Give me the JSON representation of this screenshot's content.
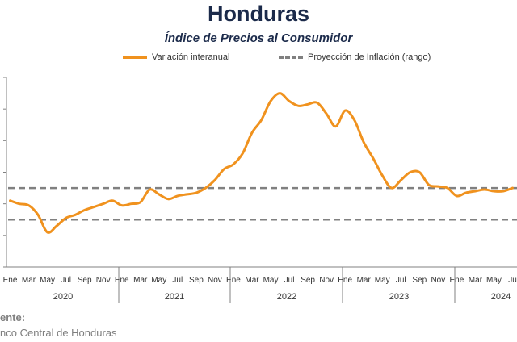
{
  "title": "Honduras",
  "subtitle": "Índice de Precios al Consumidor",
  "legend": {
    "series": "Variación interanual",
    "band": "Proyección de Inflación (rango)"
  },
  "source": {
    "label": "ente:",
    "text": "nco Central de Honduras"
  },
  "colors": {
    "series": "#f0921e",
    "band": "#808080",
    "title": "#1b2a4a"
  },
  "chart_data": {
    "type": "line",
    "title": "Índice de Precios al Consumidor",
    "month_labels": [
      "Ene",
      "Mar",
      "May",
      "Jul",
      "Sep",
      "Nov",
      "Ene",
      "Mar",
      "May",
      "Jul",
      "Sep",
      "Nov",
      "Ene",
      "Mar",
      "May",
      "Jul",
      "Sep",
      "Nov",
      "Ene",
      "Mar",
      "May",
      "Jul",
      "Sep",
      "Nov",
      "Ene",
      "Mar",
      "May",
      "Ju"
    ],
    "years": [
      "2020",
      "2021",
      "2022",
      "2023",
      "2024"
    ],
    "ylim": [
      0,
      12
    ],
    "band": [
      3,
      5
    ],
    "series": [
      {
        "name": "Variación interanual",
        "x": [
          "2020-01",
          "2020-02",
          "2020-03",
          "2020-04",
          "2020-05",
          "2020-06",
          "2020-07",
          "2020-08",
          "2020-09",
          "2020-10",
          "2020-11",
          "2020-12",
          "2021-01",
          "2021-02",
          "2021-03",
          "2021-04",
          "2021-05",
          "2021-06",
          "2021-07",
          "2021-08",
          "2021-09",
          "2021-10",
          "2021-11",
          "2021-12",
          "2022-01",
          "2022-02",
          "2022-03",
          "2022-04",
          "2022-05",
          "2022-06",
          "2022-07",
          "2022-08",
          "2022-09",
          "2022-10",
          "2022-11",
          "2022-12",
          "2023-01",
          "2023-02",
          "2023-03",
          "2023-04",
          "2023-05",
          "2023-06",
          "2023-07",
          "2023-08",
          "2023-09",
          "2023-10",
          "2023-11",
          "2023-12",
          "2024-01",
          "2024-02",
          "2024-03",
          "2024-04",
          "2024-05",
          "2024-06",
          "2024-07"
        ],
        "values": [
          4.2,
          4.0,
          3.9,
          3.3,
          2.2,
          2.6,
          3.1,
          3.3,
          3.6,
          3.8,
          4.0,
          4.2,
          3.9,
          4.0,
          4.1,
          4.9,
          4.6,
          4.3,
          4.5,
          4.6,
          4.7,
          5.0,
          5.5,
          6.2,
          6.5,
          7.2,
          8.5,
          9.3,
          10.5,
          11.0,
          10.5,
          10.2,
          10.3,
          10.4,
          9.7,
          8.9,
          9.9,
          9.3,
          7.9,
          6.9,
          5.8,
          5.0,
          5.5,
          6.0,
          6.0,
          5.2,
          5.1,
          5.0,
          4.5,
          4.7,
          4.8,
          4.9,
          4.8,
          4.8,
          5.0
        ]
      }
    ]
  }
}
